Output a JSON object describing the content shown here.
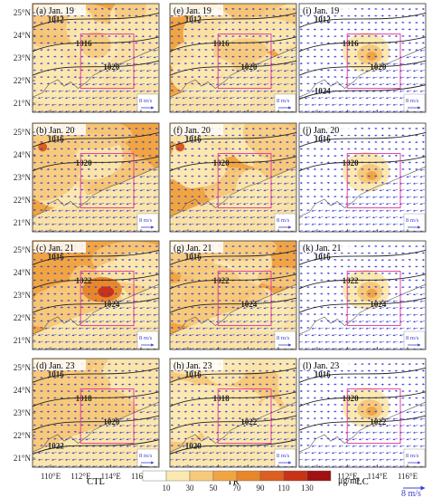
{
  "figure": {
    "y_tick_labels": [
      "25°N",
      "24°N",
      "23°N",
      "22°N",
      "21°N"
    ],
    "x_tick_labels": [
      "110°E",
      "112°E",
      "114°E",
      "116°E"
    ],
    "columns": [
      "CTL",
      "TR",
      "LC"
    ],
    "scale_text": "8 m/s",
    "bottom_scale_text": "8 m/s",
    "colorbar": {
      "ticks": [
        "10",
        "30",
        "50",
        "70",
        "90",
        "110",
        "130"
      ],
      "unit": "μg/m³",
      "colors": [
        "#ffffff",
        "#fbe9b0",
        "#f7c97a",
        "#f1a542",
        "#e8862a",
        "#dc5f1f",
        "#c93317",
        "#a11111"
      ]
    },
    "panels": [
      {
        "id": "a",
        "label": "(a)  Jan. 19",
        "col": 0,
        "row": 0,
        "isobars": [
          "1012",
          "1016",
          "1020"
        ]
      },
      {
        "id": "b",
        "label": "(b)  Jan. 20",
        "col": 0,
        "row": 1,
        "isobars": [
          "1016",
          "1020"
        ]
      },
      {
        "id": "c",
        "label": "(c)  Jan. 21",
        "col": 0,
        "row": 2,
        "isobars": [
          "1016",
          "1022",
          "1024"
        ]
      },
      {
        "id": "d",
        "label": "(d)  Jan. 23",
        "col": 0,
        "row": 3,
        "isobars": [
          "1016",
          "1018",
          "1020",
          "1022",
          "1020"
        ]
      },
      {
        "id": "e",
        "label": "(e)  Jan. 19",
        "col": 1,
        "row": 0,
        "isobars": [
          "1012",
          "1016",
          "1020"
        ]
      },
      {
        "id": "f",
        "label": "(f)  Jan. 20",
        "col": 1,
        "row": 1,
        "isobars": [
          "1016",
          "1020"
        ]
      },
      {
        "id": "g",
        "label": "(g)  Jan. 21",
        "col": 1,
        "row": 2,
        "isobars": [
          "1016",
          "1022",
          "1024"
        ]
      },
      {
        "id": "h",
        "label": "(h)  Jan. 23",
        "col": 1,
        "row": 3,
        "isobars": [
          "1016",
          "1018",
          "1022",
          "1020"
        ]
      },
      {
        "id": "i",
        "label": "(i)  Jan. 19",
        "col": 2,
        "row": 0,
        "isobars": [
          "1012",
          "1016",
          "1020",
          "1024"
        ]
      },
      {
        "id": "j",
        "label": "(j)  Jan. 20",
        "col": 2,
        "row": 1,
        "isobars": [
          "1016",
          "1020"
        ]
      },
      {
        "id": "k",
        "label": "(k)  Jan. 21",
        "col": 2,
        "row": 2,
        "isobars": [
          "1016",
          "1022",
          "1024"
        ]
      },
      {
        "id": "l",
        "label": "(l)  Jan. 23",
        "col": 2,
        "row": 3,
        "isobars": [
          "1016",
          "1020",
          "1022"
        ]
      }
    ]
  }
}
